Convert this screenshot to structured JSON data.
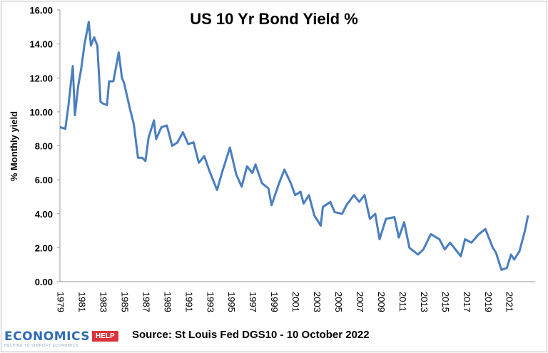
{
  "chart_data": {
    "type": "line",
    "title": "US 10 Yr Bond Yield %",
    "ylabel": "% Monthly yield",
    "xlabel": "",
    "ylim": [
      0,
      16
    ],
    "xlim": [
      1979,
      2022.8
    ],
    "yticks": [
      "0.00",
      "2.00",
      "4.00",
      "6.00",
      "8.00",
      "10.00",
      "12.00",
      "14.00",
      "16.00"
    ],
    "xticks": [
      "1979",
      "1981",
      "1983",
      "1985",
      "1987",
      "1989",
      "1991",
      "1993",
      "1995",
      "1997",
      "1999",
      "2001",
      "2003",
      "2005",
      "2007",
      "2009",
      "2011",
      "2013",
      "2015",
      "2017",
      "2019",
      "2021"
    ],
    "grid": false,
    "line_color": "#4a7ebf",
    "x": [
      1979.0,
      1979.5,
      1979.8,
      1980.2,
      1980.4,
      1980.7,
      1981.0,
      1981.3,
      1981.7,
      1981.9,
      1982.2,
      1982.5,
      1982.8,
      1983.0,
      1983.4,
      1983.6,
      1984.0,
      1984.5,
      1984.8,
      1985.0,
      1985.5,
      1985.9,
      1986.3,
      1986.7,
      1987.0,
      1987.3,
      1987.8,
      1988.0,
      1988.5,
      1989.0,
      1989.5,
      1990.0,
      1990.5,
      1991.0,
      1991.5,
      1992.0,
      1992.5,
      1993.0,
      1993.7,
      1994.2,
      1994.9,
      1995.5,
      1996.0,
      1996.5,
      1997.0,
      1997.3,
      1997.9,
      1998.5,
      1998.8,
      1999.5,
      2000.0,
      2000.6,
      2001.0,
      2001.5,
      2001.8,
      2002.3,
      2002.8,
      2003.4,
      2003.6,
      2004.3,
      2004.7,
      2005.4,
      2005.8,
      2006.5,
      2007.0,
      2007.5,
      2008.0,
      2008.5,
      2008.9,
      2009.5,
      2010.3,
      2010.7,
      2011.2,
      2011.7,
      2012.5,
      2013.0,
      2013.7,
      2014.5,
      2015.0,
      2015.5,
      2016.5,
      2016.9,
      2017.5,
      2018.2,
      2018.8,
      2019.5,
      2019.8,
      2020.3,
      2020.8,
      2021.2,
      2021.5,
      2022.0,
      2022.5,
      2022.8
    ],
    "values": [
      9.1,
      9.0,
      10.4,
      12.7,
      9.8,
      11.5,
      12.6,
      14.0,
      15.3,
      13.9,
      14.4,
      13.9,
      10.6,
      10.5,
      10.4,
      11.8,
      11.8,
      13.5,
      12.0,
      11.7,
      10.3,
      9.3,
      7.3,
      7.3,
      7.1,
      8.5,
      9.5,
      8.4,
      9.1,
      9.2,
      8.0,
      8.2,
      8.8,
      8.1,
      8.2,
      7.0,
      7.4,
      6.5,
      5.4,
      6.5,
      7.9,
      6.3,
      5.6,
      6.8,
      6.4,
      6.9,
      5.8,
      5.5,
      4.5,
      5.8,
      6.6,
      5.8,
      5.1,
      5.3,
      4.6,
      5.1,
      3.9,
      3.3,
      4.4,
      4.7,
      4.1,
      4.0,
      4.5,
      5.1,
      4.7,
      5.1,
      3.7,
      4.0,
      2.5,
      3.7,
      3.8,
      2.6,
      3.5,
      2.0,
      1.6,
      1.9,
      2.8,
      2.5,
      1.9,
      2.3,
      1.5,
      2.5,
      2.3,
      2.8,
      3.1,
      2.0,
      1.7,
      0.7,
      0.8,
      1.6,
      1.3,
      1.8,
      3.0,
      3.9
    ]
  },
  "source": "Source: St Louis Fed DGS10 - 10 October 2022",
  "logo": {
    "main": "ECONOMICS",
    "tag": "HELP",
    "sub": "HELPING TO SIMPLIFY ECONOMICS"
  }
}
